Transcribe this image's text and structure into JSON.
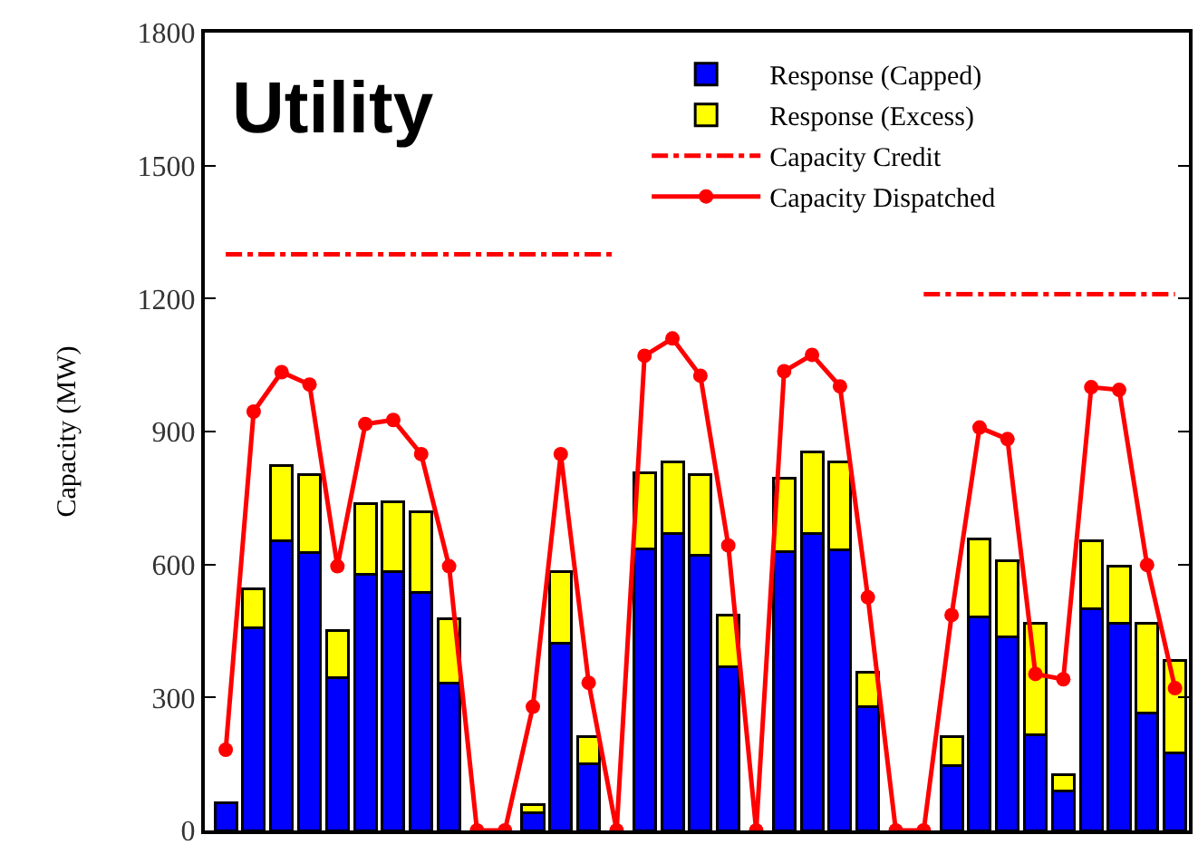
{
  "chart_data": {
    "type": "bar",
    "title": "Utility",
    "ylabel": "Capacity (MW)",
    "stacked": true,
    "categories": [
      null,
      null,
      null,
      null,
      null,
      null,
      null,
      null,
      null,
      null,
      null,
      null,
      null,
      null,
      null,
      null,
      null,
      null,
      null,
      null,
      null,
      null,
      null,
      null,
      null,
      null,
      null,
      null,
      null,
      null,
      null,
      null,
      null,
      null,
      null
    ],
    "series": [
      {
        "name": "Response (Capped)",
        "color": "#0000ff",
        "values": [
          62,
          458,
          654,
          627,
          345,
          577,
          585,
          537,
          332,
          0,
          0,
          40,
          422,
          150,
          0,
          636,
          670,
          621,
          369,
          0,
          630,
          670,
          634,
          279,
          0,
          0,
          146,
          481,
          436,
          215,
          90,
          501,
          468,
          265,
          174
        ]
      },
      {
        "name": "Response (Excess)",
        "color": "#ffff00",
        "values": [
          0,
          87,
          169,
          176,
          107,
          161,
          157,
          183,
          146,
          0,
          0,
          19,
          163,
          62,
          0,
          171,
          161,
          182,
          116,
          0,
          165,
          185,
          197,
          77,
          0,
          0,
          65,
          177,
          173,
          253,
          36,
          153,
          129,
          203,
          210
        ]
      },
      {
        "name": "Capacity Credit",
        "type": "line",
        "line_style": "dashdot",
        "marker": "none",
        "color": "#ff0000",
        "values": [
          1300,
          1300,
          1300,
          1300,
          1300,
          1300,
          1300,
          1300,
          1300,
          1300,
          1300,
          1300,
          1300,
          1300,
          1300,
          null,
          null,
          null,
          null,
          null,
          null,
          null,
          null,
          null,
          null,
          1210,
          1210,
          1210,
          1210,
          1210,
          1210,
          1210,
          1210,
          1210,
          1210
        ]
      },
      {
        "name": "Capacity Dispatched",
        "type": "line",
        "line_style": "solid",
        "marker": "circle",
        "color": "#ff0000",
        "values": [
          182,
          945,
          1034,
          1006,
          596,
          917,
          926,
          849,
          596,
          0,
          0,
          279,
          849,
          333,
          0,
          1071,
          1110,
          1026,
          643,
          0,
          1036,
          1073,
          1002,
          526,
          0,
          0,
          486,
          909,
          883,
          353,
          341,
          1000,
          994,
          599,
          321
        ]
      }
    ],
    "ylim": [
      0,
      1800
    ],
    "yticks": [
      0,
      300,
      600,
      900,
      1200,
      1500,
      1800
    ],
    "legend": "top",
    "tick_labels": "y"
  }
}
